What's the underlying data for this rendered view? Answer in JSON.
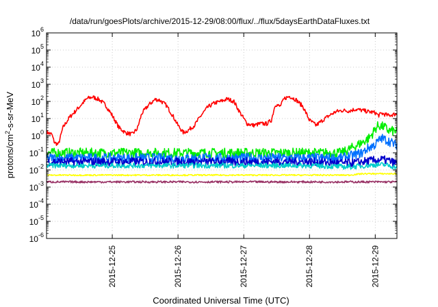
{
  "chart_data": {
    "type": "line",
    "title": "/data/run/goesPlots/archive/2015-12-29/08:00/flux/../flux/5daysEarthDataFluxes.txt",
    "xlabel": "Coordinated Universal Time (UTC)",
    "ylabel_parts": {
      "base": "protons/cm",
      "sup": "2",
      "rest": "-s-sr-MeV"
    },
    "x_ticks": [
      "2015-12-25",
      "2015-12-26",
      "2015-12-27",
      "2015-12-28",
      "2015-12-29"
    ],
    "x_tick_days": [
      1,
      2,
      3,
      4,
      5
    ],
    "xlim_days": [
      0,
      5.33
    ],
    "yscale": "log",
    "ylim": [
      1e-06,
      1000000.0
    ],
    "y_tick_exponents": [
      -6,
      -5,
      -4,
      -3,
      -2,
      -1,
      0,
      1,
      2,
      3,
      4,
      5,
      6
    ],
    "y_tick_base": "10",
    "grid": true,
    "legend": "none",
    "series": [
      {
        "color": "#ff0000",
        "points": [
          [
            0.0,
            1.6
          ],
          [
            0.08,
            1.2
          ],
          [
            0.12,
            0.4
          ],
          [
            0.18,
            0.3
          ],
          [
            0.25,
            3
          ],
          [
            0.35,
            12
          ],
          [
            0.45,
            30
          ],
          [
            0.55,
            80
          ],
          [
            0.62,
            150
          ],
          [
            0.7,
            180
          ],
          [
            0.8,
            130
          ],
          [
            0.9,
            60
          ],
          [
            1.0,
            15
          ],
          [
            1.1,
            3
          ],
          [
            1.2,
            1.5
          ],
          [
            1.3,
            1.2
          ],
          [
            1.38,
            2.5
          ],
          [
            1.45,
            20
          ],
          [
            1.55,
            60
          ],
          [
            1.65,
            130
          ],
          [
            1.72,
            120
          ],
          [
            1.82,
            60
          ],
          [
            1.92,
            15
          ],
          [
            2.0,
            4
          ],
          [
            2.08,
            1.5
          ],
          [
            2.15,
            2
          ],
          [
            2.25,
            4
          ],
          [
            2.35,
            15
          ],
          [
            2.45,
            45
          ],
          [
            2.55,
            80
          ],
          [
            2.65,
            100
          ],
          [
            2.75,
            140
          ],
          [
            2.85,
            100
          ],
          [
            2.95,
            20
          ],
          [
            3.05,
            5
          ],
          [
            3.15,
            4
          ],
          [
            3.25,
            5
          ],
          [
            3.35,
            5
          ],
          [
            3.42,
            8
          ],
          [
            3.48,
            70
          ],
          [
            3.55,
            50
          ],
          [
            3.62,
            150
          ],
          [
            3.7,
            200
          ],
          [
            3.8,
            120
          ],
          [
            3.9,
            50
          ],
          [
            4.0,
            8
          ],
          [
            4.1,
            4
          ],
          [
            4.2,
            8
          ],
          [
            4.3,
            15
          ],
          [
            4.4,
            25
          ],
          [
            4.5,
            30
          ],
          [
            4.6,
            28
          ],
          [
            4.7,
            35
          ],
          [
            4.8,
            30
          ],
          [
            4.9,
            25
          ],
          [
            5.0,
            22
          ],
          [
            5.05,
            15
          ],
          [
            5.1,
            20
          ],
          [
            5.2,
            15
          ],
          [
            5.3,
            18
          ]
        ]
      },
      {
        "color": "#00ee00",
        "points": [
          [
            0.0,
            0.1
          ],
          [
            0.5,
            0.1
          ],
          [
            1.0,
            0.1
          ],
          [
            1.5,
            0.1
          ],
          [
            2.0,
            0.1
          ],
          [
            2.5,
            0.1
          ],
          [
            3.0,
            0.1
          ],
          [
            3.5,
            0.1
          ],
          [
            4.0,
            0.1
          ],
          [
            4.5,
            0.1
          ],
          [
            4.65,
            0.2
          ],
          [
            4.8,
            0.4
          ],
          [
            4.9,
            0.7
          ],
          [
            4.95,
            1.2
          ],
          [
            5.0,
            2.5
          ],
          [
            5.05,
            4
          ],
          [
            5.1,
            3.5
          ],
          [
            5.15,
            3
          ],
          [
            5.2,
            2
          ],
          [
            5.3,
            1.8
          ]
        ]
      },
      {
        "color": "#0070ff",
        "points": [
          [
            0.0,
            0.05
          ],
          [
            0.5,
            0.05
          ],
          [
            1.0,
            0.05
          ],
          [
            1.5,
            0.05
          ],
          [
            2.0,
            0.05
          ],
          [
            2.5,
            0.05
          ],
          [
            3.0,
            0.05
          ],
          [
            3.5,
            0.05
          ],
          [
            4.0,
            0.05
          ],
          [
            4.5,
            0.05
          ],
          [
            4.65,
            0.07
          ],
          [
            4.8,
            0.1
          ],
          [
            4.9,
            0.2
          ],
          [
            5.0,
            0.3
          ],
          [
            5.05,
            0.5
          ],
          [
            5.1,
            0.7
          ],
          [
            5.2,
            0.5
          ],
          [
            5.3,
            0.3
          ]
        ]
      },
      {
        "color": "#0000cc",
        "points": [
          [
            0.0,
            0.03
          ],
          [
            0.5,
            0.03
          ],
          [
            1.0,
            0.03
          ],
          [
            1.5,
            0.03
          ],
          [
            2.0,
            0.03
          ],
          [
            2.5,
            0.03
          ],
          [
            3.0,
            0.03
          ],
          [
            3.5,
            0.03
          ],
          [
            4.0,
            0.03
          ],
          [
            4.5,
            0.025
          ],
          [
            4.65,
            0.025
          ],
          [
            4.8,
            0.03
          ],
          [
            4.95,
            0.035
          ],
          [
            5.1,
            0.04
          ],
          [
            5.2,
            0.035
          ],
          [
            5.3,
            0.025
          ]
        ]
      },
      {
        "color": "#00cccc",
        "points": [
          [
            0.0,
            0.018
          ],
          [
            1.0,
            0.018
          ],
          [
            2.0,
            0.018
          ],
          [
            3.0,
            0.018
          ],
          [
            4.0,
            0.018
          ],
          [
            4.6,
            0.015
          ],
          [
            4.8,
            0.017
          ],
          [
            5.0,
            0.02
          ],
          [
            5.15,
            0.02
          ],
          [
            5.3,
            0.015
          ]
        ]
      },
      {
        "color": "#ffff00",
        "points": [
          [
            0.0,
            0.005
          ],
          [
            1.0,
            0.005
          ],
          [
            2.0,
            0.005
          ],
          [
            3.0,
            0.005
          ],
          [
            4.0,
            0.005
          ],
          [
            4.6,
            0.005
          ],
          [
            4.8,
            0.006
          ],
          [
            5.0,
            0.006
          ],
          [
            5.3,
            0.006
          ]
        ]
      },
      {
        "color": "#993366",
        "points": [
          [
            0.0,
            0.002
          ],
          [
            1.0,
            0.002
          ],
          [
            2.0,
            0.002
          ],
          [
            3.0,
            0.002
          ],
          [
            4.0,
            0.002
          ],
          [
            5.0,
            0.002
          ],
          [
            5.3,
            0.002
          ]
        ]
      }
    ]
  }
}
